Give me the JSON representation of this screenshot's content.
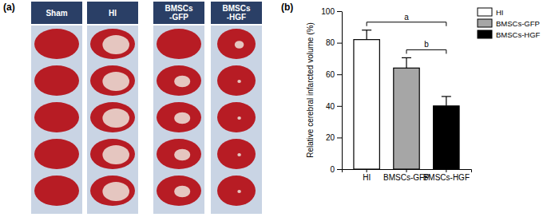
{
  "chart_data": {
    "type": "bar",
    "panel_label": "(b)",
    "categories": [
      "HI",
      "BMSCs-GFP",
      "BMSCs-HGF"
    ],
    "values": [
      82,
      64,
      40
    ],
    "errors": [
      6,
      6.5,
      6
    ],
    "colors": [
      "#ffffff",
      "#a6a6a6",
      "#000000"
    ],
    "y_label": "Relative cerebral infarcted volume (%)",
    "ylim": [
      0,
      100
    ],
    "yticks": [
      0,
      20,
      40,
      60,
      80,
      100
    ],
    "legend": "upper right",
    "annotations": [
      {
        "text": "a",
        "between": [
          "HI",
          "BMSCs-HGF"
        ]
      },
      {
        "text": "b",
        "between": [
          "BMSCs-GFP",
          "BMSCs-HGF"
        ]
      }
    ]
  },
  "photo_panel": {
    "panel_label": "(a)",
    "groups": [
      "Sham",
      "HI",
      "BMSCs\n-GFP",
      "BMSCs\n-HGF"
    ]
  }
}
